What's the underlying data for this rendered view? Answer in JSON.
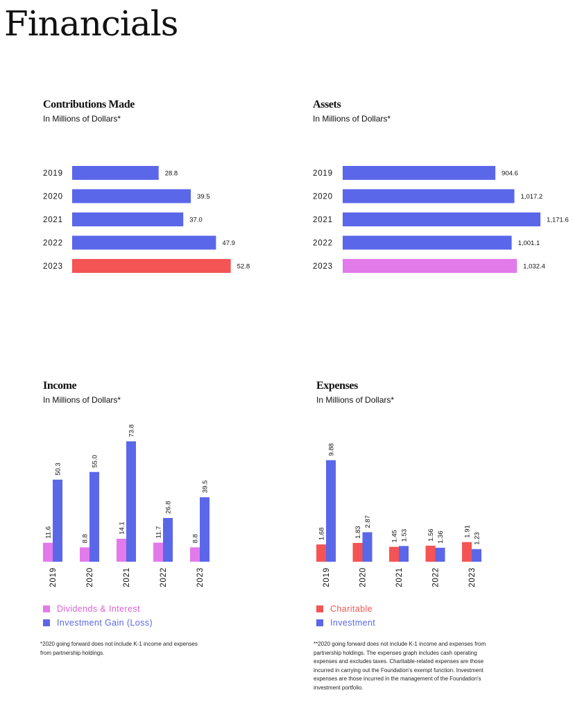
{
  "page": {
    "title": "Financials"
  },
  "colors": {
    "blue": "#5b67e9",
    "red": "#f45454",
    "pink": "#e27aea",
    "legend_pink_text": "#e05fd6",
    "legend_blue_text": "#5b67e9",
    "legend_red_text": "#f45454"
  },
  "chart_data": [
    {
      "type": "bar",
      "orientation": "horizontal",
      "title": "Contributions Made",
      "subtitle": "In Millions of Dollars*",
      "categories": [
        "2019",
        "2020",
        "2021",
        "2022",
        "2023"
      ],
      "values": [
        28.8,
        39.5,
        37.0,
        47.9,
        52.8
      ],
      "value_labels": [
        "28.8",
        "39.5",
        "37.0",
        "47.9",
        "52.8"
      ],
      "highlight_index": 4,
      "highlight_color": "red"
    },
    {
      "type": "bar",
      "orientation": "horizontal",
      "title": "Assets",
      "subtitle": "In Millions of Dollars*",
      "categories": [
        "2019",
        "2020",
        "2021",
        "2022",
        "2023"
      ],
      "values": [
        904.6,
        1017.2,
        1171.6,
        1001.1,
        1032.4
      ],
      "value_labels": [
        "904.6",
        "1,017.2",
        "1,171.6",
        "1,001.1",
        "1,032.4"
      ],
      "highlight_index": 4,
      "highlight_color": "pink"
    },
    {
      "type": "bar",
      "orientation": "vertical",
      "title": "Income",
      "subtitle": "In Millions of Dollars*",
      "categories": [
        "2019",
        "2020",
        "2021",
        "2022",
        "2023"
      ],
      "series": [
        {
          "name": "Dividends & Interest",
          "color": "pink",
          "values": [
            11.6,
            8.8,
            14.1,
            11.7,
            8.8
          ],
          "value_labels": [
            "11.6",
            "8.8",
            "14.1",
            "11.7",
            "8.8"
          ]
        },
        {
          "name": "Investment Gain (Loss)",
          "color": "blue",
          "values": [
            50.3,
            55.0,
            73.8,
            26.8,
            39.5
          ],
          "value_labels": [
            "50.3",
            "55.0",
            "73.8",
            "26.8",
            "39.5"
          ]
        }
      ],
      "footnote": "*2020 going forward does not include K-1 income and expenses from partnership holdings."
    },
    {
      "type": "bar",
      "orientation": "vertical",
      "title": "Expenses",
      "subtitle": "In Millions of Dollars*",
      "categories": [
        "2019",
        "2020",
        "2021",
        "2022",
        "2023"
      ],
      "series": [
        {
          "name": "Charitable",
          "color": "red",
          "values": [
            1.68,
            1.83,
            1.45,
            1.56,
            1.91
          ],
          "value_labels": [
            "1.68",
            "1.83",
            "1.45",
            "1.56",
            "1.91"
          ]
        },
        {
          "name": "Investment",
          "color": "blue",
          "values": [
            9.88,
            2.87,
            1.53,
            1.36,
            1.23
          ],
          "value_labels": [
            "9.88",
            "2.87",
            "1.53",
            "1.36",
            "1.23"
          ]
        }
      ],
      "footnote": "**2020 going forward does not include K-1 income and expenses from partnership holdings. The expenses graph includes cash operating expenses and excludes taxes. Charitable-related expenses are those incurred in carrying out the Foundation's exempt function. Investment expenses are those incurred in the management of the Foundation's investment portfolio."
    }
  ]
}
